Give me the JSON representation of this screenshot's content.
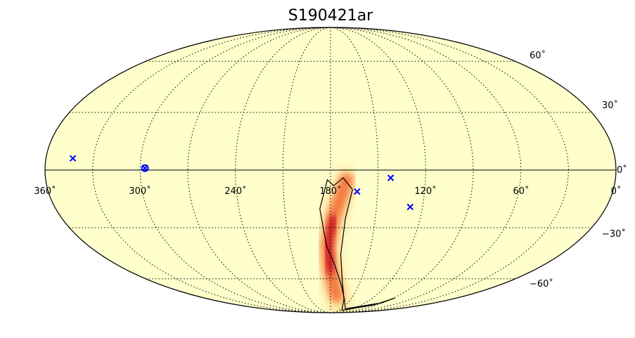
{
  "title": "S190421ar",
  "projection": "mollweide",
  "longitude_axis": {
    "direction": "reversed",
    "range": [
      360,
      0
    ],
    "gridlines_every": 30,
    "tick_labels": [
      {
        "value": 360,
        "text": "360˚"
      },
      {
        "value": 300,
        "text": "300˚"
      },
      {
        "value": 240,
        "text": "240˚"
      },
      {
        "value": 180,
        "text": "180˚"
      },
      {
        "value": 120,
        "text": "120˚"
      },
      {
        "value": 60,
        "text": "60˚"
      },
      {
        "value": 0,
        "text": "0˚"
      }
    ]
  },
  "latitude_axis": {
    "range": [
      -90,
      90
    ],
    "gridlines_every": 30,
    "tick_labels": [
      {
        "value": 60,
        "text": "60˚"
      },
      {
        "value": 30,
        "text": "30˚"
      },
      {
        "value": 0,
        "text": "0˚"
      },
      {
        "value": -30,
        "text": "−30˚"
      },
      {
        "value": -60,
        "text": "−60˚"
      }
    ]
  },
  "grid": true,
  "colors": {
    "background_fill": "#ffffcc",
    "probability_low": "#ffd27a",
    "probability_mid": "#f2612a",
    "probability_high": "#c8001e",
    "marker": "#0000ff",
    "contour": "#000000"
  },
  "markers": [
    {
      "shape": "x",
      "lon": 343,
      "lat": 6
    },
    {
      "shape": "circle-x",
      "lon": 297,
      "lat": 1
    },
    {
      "shape": "x",
      "lon": 163,
      "lat": -11
    },
    {
      "shape": "x",
      "lon": 142,
      "lat": -4
    },
    {
      "shape": "x",
      "lon": 128,
      "lat": -19
    }
  ],
  "probability_region": {
    "description_units": "degrees lon/lat",
    "core_track": [
      [
        170,
        -5
      ],
      [
        178,
        -25
      ],
      [
        182,
        -40
      ],
      [
        180,
        -55
      ],
      [
        172,
        -72
      ],
      [
        160,
        -82
      ]
    ],
    "contour_main": [
      [
        178,
        -8
      ],
      [
        172,
        -4
      ],
      [
        166,
        -10
      ],
      [
        170,
        -25
      ],
      [
        172,
        -45
      ],
      [
        168,
        -62
      ],
      [
        160,
        -75
      ],
      [
        140,
        -86
      ],
      [
        96,
        -80
      ],
      [
        88,
        -74
      ],
      [
        92,
        -78
      ],
      [
        140,
        -84
      ],
      [
        158,
        -76
      ],
      [
        168,
        -65
      ],
      [
        176,
        -52
      ],
      [
        183,
        -40
      ],
      [
        187,
        -20
      ],
      [
        182,
        -5
      ],
      [
        178,
        -8
      ]
    ]
  }
}
